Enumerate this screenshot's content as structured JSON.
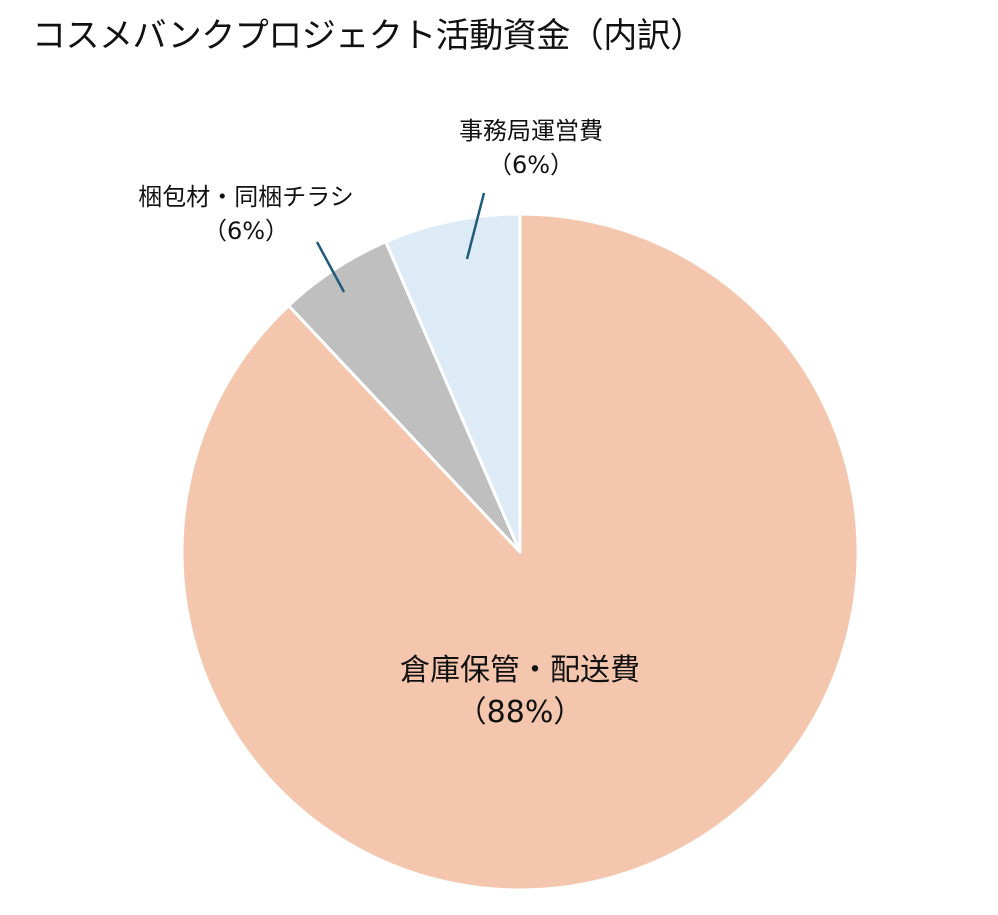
{
  "chart_data": {
    "type": "pie",
    "title": "コスメバンクプロジェクト活動資金（内訳）",
    "slices": [
      {
        "label": "倉庫保管・配送費",
        "value_label": "（88%）",
        "value": 88,
        "color": "#F5C6AE"
      },
      {
        "label": "梱包材・同梱チラシ",
        "value_label": "（6%）",
        "value": 5.5,
        "color": "#BFBFBF"
      },
      {
        "label": "事務局運営費",
        "value_label": "（6%）",
        "value": 6.5,
        "color": "#DDEBF7"
      }
    ],
    "leader_line_color": "#1F5A7A",
    "slice_border_color": "#FFFFFF",
    "legend": "none"
  }
}
